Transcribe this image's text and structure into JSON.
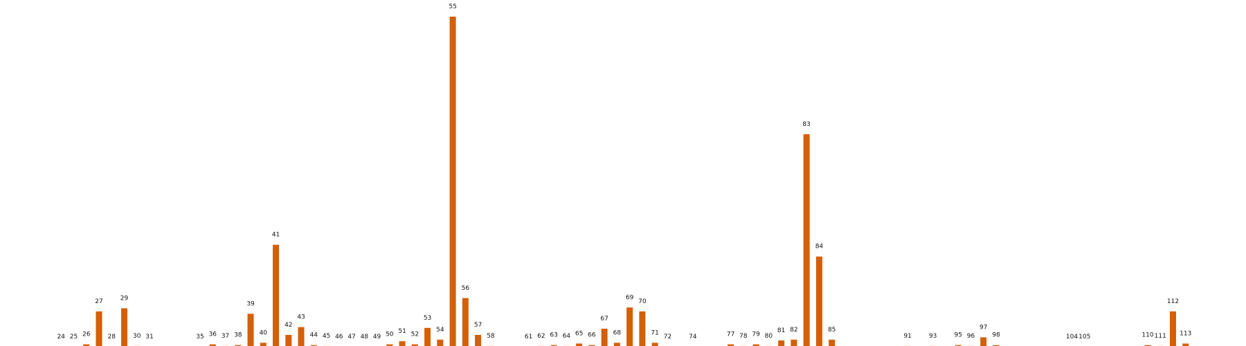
{
  "chart_data": {
    "type": "bar",
    "title": "",
    "xlabel": "",
    "ylabel": "",
    "grid": false,
    "legend": "none",
    "color": "#d45f06",
    "categories": [
      "24",
      "25",
      "26",
      "27",
      "28",
      "29",
      "30",
      "31",
      "35",
      "36",
      "37",
      "38",
      "39",
      "40",
      "41",
      "42",
      "43",
      "44",
      "45",
      "46",
      "47",
      "48",
      "49",
      "50",
      "51",
      "52",
      "53",
      "54",
      "55",
      "56",
      "57",
      "58",
      "61",
      "62",
      "63",
      "64",
      "65",
      "66",
      "67",
      "68",
      "69",
      "70",
      "71",
      "72",
      "74",
      "77",
      "78",
      "79",
      "80",
      "81",
      "82",
      "83",
      "84",
      "85",
      "91",
      "93",
      "95",
      "96",
      "97",
      "98",
      "104",
      "105",
      "110",
      "111",
      "112",
      "113"
    ],
    "x": [
      24,
      25,
      26,
      27,
      28,
      29,
      30,
      31,
      35,
      36,
      37,
      38,
      39,
      40,
      41,
      42,
      43,
      44,
      45,
      46,
      47,
      48,
      49,
      50,
      51,
      52,
      53,
      54,
      55,
      56,
      57,
      58,
      61,
      62,
      63,
      64,
      65,
      66,
      67,
      68,
      69,
      70,
      71,
      72,
      74,
      77,
      78,
      79,
      80,
      81,
      82,
      83,
      84,
      85,
      91,
      93,
      95,
      96,
      97,
      98,
      104,
      105,
      110,
      111,
      112,
      113
    ],
    "values": [
      0,
      0,
      3,
      45,
      0,
      49,
      1,
      0,
      0,
      3,
      1,
      2,
      42,
      5,
      130,
      15,
      25,
      2,
      1,
      0,
      0,
      0,
      0,
      3,
      7,
      3,
      24,
      9,
      421,
      62,
      15,
      1,
      0,
      1,
      2,
      1,
      4,
      2,
      23,
      5,
      50,
      45,
      5,
      0,
      0,
      3,
      1,
      3,
      1,
      8,
      9,
      271,
      115,
      9,
      1,
      1,
      2,
      1,
      12,
      2,
      0,
      0,
      2,
      1,
      45,
      4
    ],
    "ylim": [
      0,
      421
    ]
  }
}
